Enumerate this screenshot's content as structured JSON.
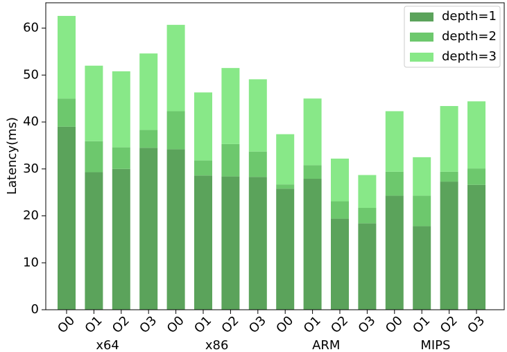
{
  "chart_data": {
    "type": "stacked_bar",
    "y_label": "Latency(ms)",
    "categories": [
      "O0",
      "O1",
      "O2",
      "O3",
      "O0",
      "O1",
      "O2",
      "O3",
      "O0",
      "O1",
      "O2",
      "O3",
      "O0",
      "O1",
      "O2",
      "O3"
    ],
    "groups": [
      "x64",
      "x86",
      "ARM",
      "MIPS"
    ],
    "series": [
      {
        "name": "depth=1",
        "color": "#5ba35b",
        "values": [
          39,
          29.3,
          30,
          34.5,
          34.2,
          28.6,
          28.4,
          28.3,
          25.8,
          27.9,
          19.4,
          18.4,
          24.3,
          17.8,
          27.3,
          26.6
        ]
      },
      {
        "name": "depth=2",
        "color": "#6dc86d",
        "values": [
          6,
          6.6,
          4.6,
          3.8,
          8.1,
          3.2,
          6.9,
          5.4,
          0.9,
          2.9,
          3.7,
          3.3,
          5.1,
          6.5,
          2.1,
          3.5
        ]
      },
      {
        "name": "depth=3",
        "color": "#88e888",
        "values": [
          17.6,
          16.1,
          16.2,
          16.3,
          18.4,
          14.5,
          16.2,
          15.4,
          10.7,
          14.2,
          9.1,
          7,
          12.9,
          8.2,
          14,
          14.3
        ]
      }
    ],
    "ylim": [
      0,
      65.4
    ],
    "yticks": [
      0,
      10,
      20,
      30,
      40,
      50,
      60
    ],
    "legend": "upper right"
  }
}
